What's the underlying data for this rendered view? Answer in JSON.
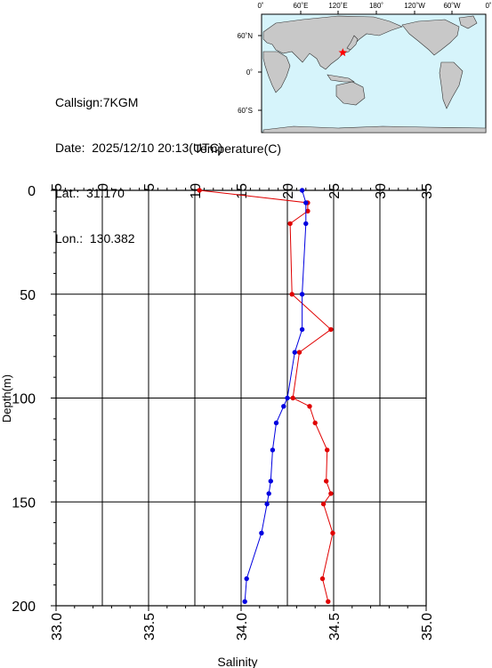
{
  "station": {
    "callsign_line": "Callsign:7KGM",
    "date_label": "Date:",
    "date_value": "2025/12/10 20:13(UTC)",
    "lat_label": "Lat.:",
    "lat_value": "31.170",
    "lon_label": "Lon.:",
    "lon_value": "130.382"
  },
  "map": {
    "top_labels": [
      "0˚",
      "60˚E",
      "120˚E",
      "180˚",
      "120˚W",
      "60˚W",
      "0˚"
    ],
    "left_labels": [
      "60˚N",
      "0˚",
      "60˚S"
    ],
    "ocean_color": "#d6f4fb",
    "land_color": "#c8c8c8",
    "marker_color": "#ff0000",
    "marker": {
      "lon": 130.382,
      "lat": 31.17
    }
  },
  "chart_data": {
    "type": "line",
    "ylabel": "Depth(m)",
    "top_axis_label": "Temperature(C)",
    "bottom_axis_label": "Salinity",
    "depth_range": [
      0,
      200
    ],
    "depth_ticks": [
      "0",
      "50",
      "100",
      "150",
      "200"
    ],
    "temperature_range": [
      -5,
      35
    ],
    "temperature_ticks": [
      "−5",
      "0",
      "5",
      "10",
      "15",
      "20",
      "25",
      "30",
      "35"
    ],
    "salinity_range": [
      33.0,
      35.0
    ],
    "salinity_ticks": [
      "33.0",
      "33.5",
      "34.0",
      "34.5",
      "35.0"
    ],
    "series": [
      {
        "quantity": "temperature",
        "color": "#e00000",
        "depth": [
          0,
          6,
          10,
          16,
          50,
          67,
          78,
          100,
          104,
          112,
          125,
          140,
          146,
          151,
          165,
          187,
          198
        ],
        "values": [
          10.5,
          22.2,
          22.2,
          20.3,
          20.5,
          24.7,
          21.3,
          20.6,
          22.4,
          23.0,
          24.3,
          24.2,
          24.7,
          23.9,
          24.9,
          23.8,
          24.4
        ]
      },
      {
        "quantity": "salinity",
        "color": "#0000e0",
        "depth": [
          0,
          6,
          16,
          50,
          67,
          78,
          100,
          104,
          112,
          125,
          140,
          146,
          151,
          165,
          187,
          198
        ],
        "values": [
          34.33,
          34.35,
          34.35,
          34.33,
          34.33,
          34.29,
          34.25,
          34.23,
          34.19,
          34.17,
          34.16,
          34.15,
          34.14,
          34.11,
          34.03,
          34.02
        ]
      }
    ]
  }
}
